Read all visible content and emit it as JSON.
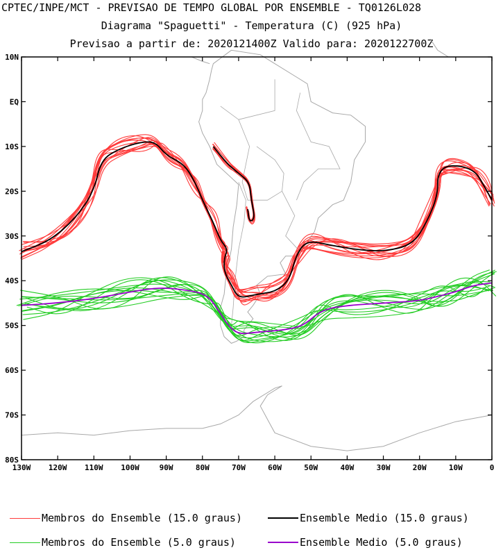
{
  "header": {
    "line1": "CPTEC/INPE/MCT - PREVISAO DE TEMPO GLOBAL POR ENSEMBLE - TQ0126L028",
    "line2": "Diagrama \"Spaguetti\" - Temperatura (C) (925 hPa)",
    "line3": "Previsao a partir de: 2020121400Z  Valido para: 2020122700Z"
  },
  "axes": {
    "lat_labels": [
      "10N",
      "EQ",
      "10S",
      "20S",
      "30S",
      "40S",
      "50S",
      "60S",
      "70S",
      "80S"
    ],
    "lat_values": [
      10,
      0,
      -10,
      -20,
      -30,
      -40,
      -50,
      -60,
      -70,
      -80
    ],
    "lon_labels": [
      "130W",
      "120W",
      "110W",
      "100W",
      "90W",
      "80W",
      "70W",
      "60W",
      "50W",
      "40W",
      "30W",
      "20W",
      "10W",
      "0"
    ],
    "lon_values": [
      -130,
      -120,
      -110,
      -100,
      -90,
      -80,
      -70,
      -60,
      -50,
      -40,
      -30,
      -20,
      -10,
      0
    ],
    "lon_range": [
      -130,
      0
    ],
    "lat_range": [
      -80,
      10
    ]
  },
  "colors": {
    "member_15": "#ff3b3b",
    "mean_15": "#000000",
    "member_5": "#22cc22",
    "mean_5": "#9900cc",
    "coast": "#a8a8a8"
  },
  "contours": {
    "mean_15": [
      [
        -130,
        -33.5
      ],
      [
        -122,
        -31
      ],
      [
        -115,
        -26
      ],
      [
        -110,
        -20
      ],
      [
        -108,
        -13
      ],
      [
        -103,
        -10.5
      ],
      [
        -97,
        -9
      ],
      [
        -93,
        -9
      ],
      [
        -90,
        -12
      ],
      [
        -85,
        -14
      ],
      [
        -82,
        -18
      ],
      [
        -80,
        -22
      ],
      [
        -77,
        -27
      ],
      [
        -75,
        -31
      ],
      [
        -73,
        -33
      ],
      [
        -74,
        -35
      ],
      [
        -74,
        -38
      ],
      [
        -72,
        -41
      ],
      [
        -70,
        -44
      ],
      [
        -65,
        -43
      ],
      [
        -60,
        -42.5
      ],
      [
        -56,
        -40
      ],
      [
        -54,
        -34
      ],
      [
        -51,
        -31
      ],
      [
        -45,
        -32
      ],
      [
        -38,
        -33
      ],
      [
        -30,
        -33.5
      ],
      [
        -22,
        -32
      ],
      [
        -18,
        -27
      ],
      [
        -15,
        -21
      ],
      [
        -15,
        -16
      ],
      [
        -12,
        -14
      ],
      [
        -5,
        -15
      ],
      [
        -2,
        -19
      ],
      [
        0,
        -22
      ]
    ],
    "mean_15_andes": [
      [
        -77,
        -10
      ],
      [
        -73,
        -14
      ],
      [
        -70,
        -16
      ],
      [
        -67,
        -18
      ],
      [
        -66.5,
        -22
      ],
      [
        -65.5,
        -26
      ],
      [
        -67,
        -27
      ],
      [
        -67.5,
        -24
      ]
    ],
    "mean_5": [
      [
        -130,
        -45.5
      ],
      [
        -120,
        -45
      ],
      [
        -110,
        -44
      ],
      [
        -100,
        -42.5
      ],
      [
        -92,
        -41.5
      ],
      [
        -85,
        -42
      ],
      [
        -79,
        -43
      ],
      [
        -76,
        -46
      ],
      [
        -73,
        -50
      ],
      [
        -70,
        -52
      ],
      [
        -65,
        -51.5
      ],
      [
        -57,
        -51
      ],
      [
        -52,
        -50
      ],
      [
        -47,
        -46.5
      ],
      [
        -40,
        -45.5
      ],
      [
        -30,
        -45
      ],
      [
        -20,
        -44.5
      ],
      [
        -15,
        -43.5
      ],
      [
        -10,
        -42.5
      ],
      [
        -5,
        -41
      ],
      [
        0,
        -40.5
      ]
    ]
  },
  "legend": {
    "item1": "Membros do Ensemble (15.0 graus)",
    "item2": "Ensemble Medio (15.0 graus)",
    "item3": "Membros do Ensemble (5.0 graus)",
    "item4": "Ensemble Medio (5.0 graus)"
  }
}
